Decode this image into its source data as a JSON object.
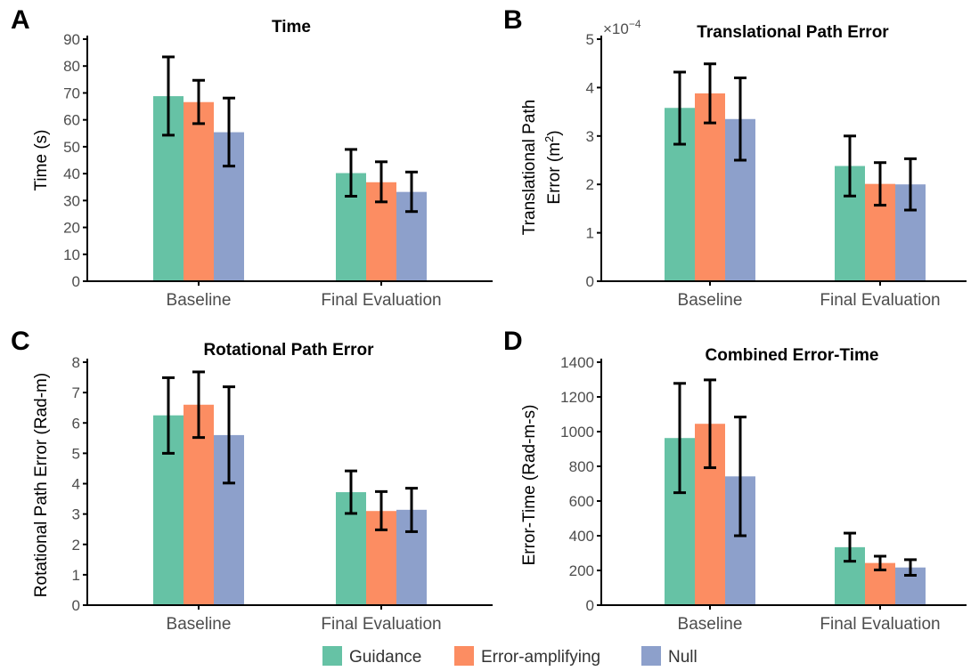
{
  "colors": {
    "Guidance": "#66c2a5",
    "Error-amplifying": "#fc8d62",
    "Null": "#8da0cb"
  },
  "legend": {
    "entries": [
      "Guidance",
      "Error-amplifying",
      "Null"
    ],
    "placement": "bottom"
  },
  "chart_data": [
    {
      "panel": "A",
      "type": "bar",
      "title": "Time",
      "ylabel": "Time (s)",
      "categories": [
        "Baseline",
        "Final Evaluation"
      ],
      "ylim": [
        0,
        90
      ],
      "yticks": [
        0,
        10,
        20,
        30,
        40,
        50,
        60,
        70,
        80,
        90
      ],
      "ytick_labels": [
        "0",
        "10",
        "20",
        "30",
        "40",
        "50",
        "60",
        "70",
        "80",
        "90"
      ],
      "series": [
        {
          "name": "Guidance",
          "values": [
            68.8,
            40.2
          ],
          "err_low": [
            54.3,
            31.6
          ],
          "err_high": [
            83.4,
            49.0
          ]
        },
        {
          "name": "Error-amplifying",
          "values": [
            66.6,
            36.8
          ],
          "err_low": [
            58.6,
            29.5
          ],
          "err_high": [
            74.7,
            44.4
          ]
        },
        {
          "name": "Null",
          "values": [
            55.4,
            33.2
          ],
          "err_low": [
            42.8,
            25.9
          ],
          "err_high": [
            68.1,
            40.6
          ]
        }
      ]
    },
    {
      "panel": "B",
      "type": "bar",
      "title": "Translational Path Error",
      "ylabel": "Translational Path",
      "ylabel2": "Error (m",
      "ylabel_sup": "2",
      "ylabel_close": ")",
      "exponent_base": "×10",
      "exponent_power": "−4",
      "categories": [
        "Baseline",
        "Final Evaluation"
      ],
      "ylim": [
        0,
        5
      ],
      "yticks": [
        0,
        1,
        2,
        3,
        4,
        5
      ],
      "ytick_labels": [
        "0",
        "1",
        "2",
        "3",
        "4",
        "5"
      ],
      "series": [
        {
          "name": "Guidance",
          "values": [
            3.58,
            2.38
          ],
          "err_low": [
            2.83,
            1.76
          ],
          "err_high": [
            4.32,
            3.0
          ]
        },
        {
          "name": "Error-amplifying",
          "values": [
            3.88,
            2.01
          ],
          "err_low": [
            3.27,
            1.57
          ],
          "err_high": [
            4.49,
            2.45
          ]
        },
        {
          "name": "Null",
          "values": [
            3.35,
            2.0
          ],
          "err_low": [
            2.5,
            1.47
          ],
          "err_high": [
            4.2,
            2.53
          ]
        }
      ]
    },
    {
      "panel": "C",
      "type": "bar",
      "title": "Rotational Path Error",
      "ylabel": "Rotational Path Error (Rad-m)",
      "categories": [
        "Baseline",
        "Final Evaluation"
      ],
      "ylim": [
        0,
        8
      ],
      "yticks": [
        0,
        1,
        2,
        3,
        4,
        5,
        6,
        7,
        8
      ],
      "ytick_labels": [
        "0",
        "1",
        "2",
        "3",
        "4",
        "5",
        "6",
        "7",
        "8"
      ],
      "series": [
        {
          "name": "Guidance",
          "values": [
            6.25,
            3.72
          ],
          "err_low": [
            5.0,
            3.02
          ],
          "err_high": [
            7.49,
            4.42
          ]
        },
        {
          "name": "Error-amplifying",
          "values": [
            6.6,
            3.1
          ],
          "err_low": [
            5.52,
            2.48
          ],
          "err_high": [
            7.68,
            3.74
          ]
        },
        {
          "name": "Null",
          "values": [
            5.6,
            3.14
          ],
          "err_low": [
            4.02,
            2.42
          ],
          "err_high": [
            7.19,
            3.85
          ]
        }
      ]
    },
    {
      "panel": "D",
      "type": "bar",
      "title": "Combined Error-Time",
      "ylabel": "Error-Time (Rad-m-s)",
      "categories": [
        "Baseline",
        "Final Evaluation"
      ],
      "ylim": [
        0,
        1400
      ],
      "yticks": [
        0,
        200,
        400,
        600,
        800,
        1000,
        1200,
        1400
      ],
      "ytick_labels": [
        "0",
        "200",
        "400",
        "600",
        "800",
        "1000",
        "1200",
        "1400"
      ],
      "series": [
        {
          "name": "Guidance",
          "values": [
            963,
            334
          ],
          "err_low": [
            648,
            253
          ],
          "err_high": [
            1278,
            415
          ]
        },
        {
          "name": "Error-amplifying",
          "values": [
            1045,
            243
          ],
          "err_low": [
            792,
            203
          ],
          "err_high": [
            1298,
            282
          ]
        },
        {
          "name": "Null",
          "values": [
            742,
            217
          ],
          "err_low": [
            400,
            172
          ],
          "err_high": [
            1084,
            262
          ]
        }
      ]
    }
  ]
}
